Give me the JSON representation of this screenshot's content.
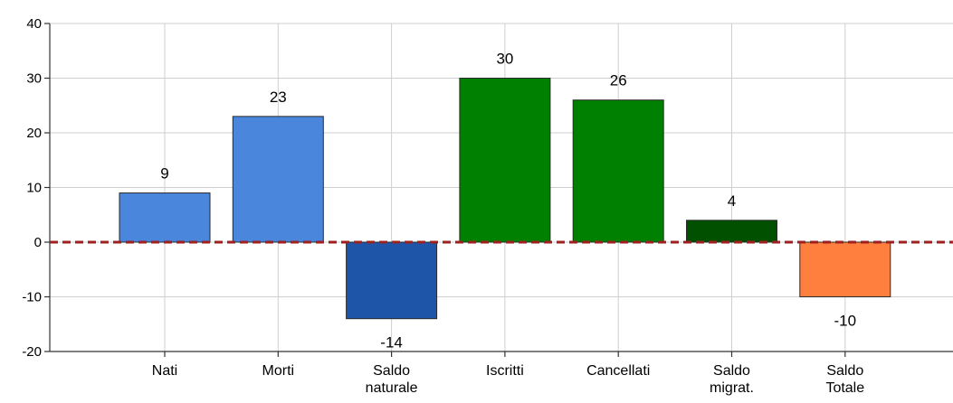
{
  "chart_data": {
    "type": "bar",
    "title": "",
    "xlabel": "",
    "ylabel": "",
    "ylim": [
      -20,
      40
    ],
    "yticks": [
      -20,
      -10,
      0,
      10,
      20,
      30,
      40
    ],
    "grid": true,
    "categories": [
      [
        "Nati"
      ],
      [
        "Morti"
      ],
      [
        "Saldo",
        "naturale"
      ],
      [
        "Iscritti"
      ],
      [
        "Cancellati"
      ],
      [
        "Saldo",
        "migrat."
      ],
      [
        "Saldo",
        "Totale"
      ]
    ],
    "values": [
      9,
      23,
      -14,
      30,
      26,
      4,
      -10
    ],
    "colors": [
      "#4a86dc",
      "#4a86dc",
      "#1e55a8",
      "#008000",
      "#008000",
      "#005000",
      "#ff7f3f"
    ],
    "zero_line_color": "#a02020"
  }
}
